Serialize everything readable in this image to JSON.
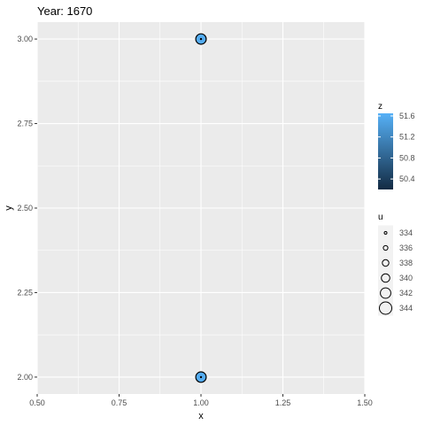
{
  "chart_data": {
    "type": "scatter",
    "title": "Year: 1670",
    "xlabel": "x",
    "ylabel": "y",
    "xlim": [
      0.5,
      1.5
    ],
    "ylim": [
      1.95,
      3.05
    ],
    "x_ticks": [
      "0.50",
      "0.75",
      "1.00",
      "1.25",
      "1.50"
    ],
    "y_ticks": [
      "2.00",
      "2.25",
      "2.50",
      "2.75",
      "3.00"
    ],
    "grid": true,
    "points": [
      {
        "x": 1.0,
        "y": 3.0,
        "z": 51.6,
        "u": 342
      },
      {
        "x": 1.0,
        "y": 2.0,
        "z": 51.6,
        "u": 342
      }
    ],
    "legend_placement": "right",
    "color_legend": {
      "title": "z",
      "labels": [
        "51.6",
        "51.2",
        "50.8",
        "50.4"
      ],
      "values": [
        51.6,
        51.2,
        50.8,
        50.4
      ],
      "range": [
        50.2,
        51.65
      ],
      "low_color": "#132B43",
      "high_color": "#56B1F7"
    },
    "size_legend": {
      "title": "u",
      "labels": [
        "334",
        "336",
        "338",
        "340",
        "342",
        "344"
      ],
      "values": [
        334,
        336,
        338,
        340,
        342,
        344
      ]
    },
    "colors": {
      "panel_background": "#EBEBEB",
      "grid_color": "#FFFFFF"
    }
  }
}
